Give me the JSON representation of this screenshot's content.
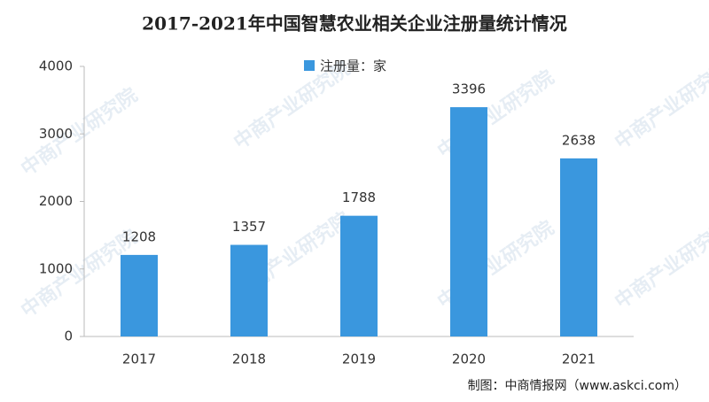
{
  "chart_data": {
    "type": "bar",
    "title": "2017-2021年中国智慧农业相关企业注册量统计情况",
    "legend_label": "注册量：家",
    "source": "制图：中商情报网（www.askci.com）",
    "watermark": "中商产业研究院",
    "categories": [
      "2017",
      "2018",
      "2019",
      "2020",
      "2021"
    ],
    "series": [
      {
        "name": "注册量：家",
        "color": "#3a97de",
        "values": [
          1208,
          1357,
          1788,
          3396,
          2638
        ]
      }
    ],
    "ylim": [
      0,
      4000
    ],
    "yticks": [
      0,
      1000,
      2000,
      3000,
      4000
    ],
    "grid": false
  }
}
